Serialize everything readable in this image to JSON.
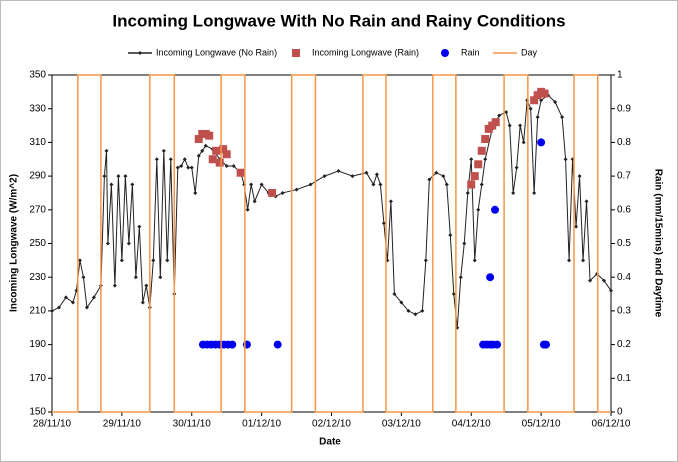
{
  "chart_data": {
    "type": "line",
    "title": "Incoming Longwave With No Rain and Rainy Conditions",
    "x_label": "Date",
    "y_label": "Incoming Longwave  (W/m^2)",
    "y2_label": "Rain (mm/15mins) and Daytime",
    "xlim": [
      0,
      8
    ],
    "xticks": [
      {
        "value": 0,
        "label": "28/11/10"
      },
      {
        "value": 1,
        "label": "29/11/10"
      },
      {
        "value": 2,
        "label": "30/11/10"
      },
      {
        "value": 3,
        "label": "01/12/10"
      },
      {
        "value": 4,
        "label": "02/12/10"
      },
      {
        "value": 5,
        "label": "03/12/10"
      },
      {
        "value": 6,
        "label": "04/12/10"
      },
      {
        "value": 7,
        "label": "05/12/10"
      },
      {
        "value": 8,
        "label": "06/12/10"
      }
    ],
    "ylim": [
      150,
      350
    ],
    "yticks": [
      150,
      170,
      190,
      210,
      230,
      250,
      270,
      290,
      310,
      330,
      350
    ],
    "y2lim": [
      0,
      1
    ],
    "y2ticks": [
      0,
      0.1,
      0.2,
      0.3,
      0.4,
      0.5,
      0.6,
      0.7,
      0.8,
      0.9,
      1
    ],
    "series": [
      {
        "name": "Incoming Longwave (No Rain)",
        "color": "#222222",
        "line": true,
        "marker": "diamond",
        "x": [
          0.0,
          0.1,
          0.2,
          0.3,
          0.35,
          0.4,
          0.45,
          0.5,
          0.6,
          0.7,
          0.75,
          0.78,
          0.8,
          0.85,
          0.9,
          0.95,
          1.0,
          1.05,
          1.1,
          1.15,
          1.2,
          1.25,
          1.3,
          1.35,
          1.4,
          1.45,
          1.5,
          1.55,
          1.6,
          1.65,
          1.7,
          1.75,
          1.8,
          1.85,
          1.9,
          1.95,
          2.0,
          2.05,
          2.1,
          2.15,
          2.2,
          2.3,
          2.4,
          2.5,
          2.6,
          2.7,
          2.75,
          2.8,
          2.85,
          2.9,
          3.0,
          3.1,
          3.2,
          3.3,
          3.5,
          3.7,
          3.9,
          4.1,
          4.3,
          4.5,
          4.6,
          4.65,
          4.7,
          4.75,
          4.8,
          4.85,
          4.9,
          5.0,
          5.1,
          5.2,
          5.3,
          5.35,
          5.4,
          5.5,
          5.6,
          5.65,
          5.7,
          5.75,
          5.8,
          5.85,
          5.9,
          5.95,
          6.0,
          6.05,
          6.1,
          6.15,
          6.2,
          6.3,
          6.4,
          6.5,
          6.55,
          6.6,
          6.65,
          6.7,
          6.75,
          6.8,
          6.85,
          6.9,
          6.95,
          7.0,
          7.1,
          7.2,
          7.3,
          7.35,
          7.4,
          7.45,
          7.5,
          7.55,
          7.6,
          7.65,
          7.7,
          7.8,
          7.9,
          8.0
        ],
        "values": [
          210,
          212,
          218,
          215,
          222,
          240,
          230,
          212,
          218,
          225,
          290,
          305,
          250,
          285,
          225,
          290,
          240,
          290,
          250,
          285,
          230,
          260,
          215,
          225,
          212,
          240,
          300,
          230,
          305,
          240,
          300,
          220,
          295,
          296,
          300,
          295,
          295,
          280,
          302,
          305,
          308,
          306,
          300,
          296,
          296,
          292,
          285,
          270,
          285,
          275,
          285,
          280,
          278,
          280,
          282,
          285,
          290,
          293,
          290,
          292,
          285,
          291,
          285,
          262,
          240,
          275,
          220,
          215,
          210,
          208,
          210,
          240,
          288,
          292,
          290,
          285,
          255,
          220,
          200,
          230,
          250,
          280,
          300,
          240,
          270,
          285,
          300,
          318,
          326,
          328,
          320,
          280,
          295,
          320,
          310,
          335,
          330,
          280,
          325,
          335,
          338,
          334,
          325,
          300,
          240,
          300,
          260,
          290,
          240,
          275,
          228,
          232,
          228,
          222
        ]
      },
      {
        "name": "Incoming Longwave (Rain)",
        "color": "#c0504d",
        "line": false,
        "marker": "square",
        "x": [
          2.1,
          2.15,
          2.2,
          2.25,
          2.3,
          2.35,
          2.4,
          2.45,
          2.5,
          2.7,
          3.15,
          6.0,
          6.05,
          6.1,
          6.15,
          6.2,
          6.25,
          6.3,
          6.35,
          6.9,
          6.95,
          7.0,
          7.05
        ],
        "values": [
          312,
          315,
          315,
          314,
          300,
          305,
          298,
          306,
          303,
          292,
          280,
          285,
          290,
          297,
          305,
          312,
          318,
          320,
          322,
          335,
          338,
          340,
          339
        ]
      },
      {
        "name": "Rain",
        "color": "#0000ee",
        "line": false,
        "marker": "circle",
        "axis": "y2",
        "x": [
          2.16,
          2.22,
          2.28,
          2.34,
          2.4,
          2.46,
          2.52,
          2.58,
          2.79,
          3.23,
          6.17,
          6.22,
          6.27,
          6.31,
          6.37,
          6.27,
          6.34,
          7.0,
          7.04,
          7.07
        ],
        "values": [
          0.2,
          0.2,
          0.2,
          0.2,
          0.2,
          0.2,
          0.2,
          0.2,
          0.2,
          0.2,
          0.2,
          0.2,
          0.2,
          0.2,
          0.2,
          0.4,
          0.6,
          0.8,
          0.2,
          0.2
        ]
      },
      {
        "name": "Day",
        "color": "#f79646",
        "line": true,
        "marker": "none",
        "axis": "y2",
        "x": [
          0,
          0.37,
          0.37,
          0.7,
          0.7,
          1.4,
          1.4,
          1.75,
          1.75,
          2.42,
          2.42,
          2.76,
          2.76,
          3.43,
          3.43,
          3.77,
          3.77,
          4.45,
          4.45,
          4.78,
          4.78,
          5.45,
          5.45,
          5.78,
          5.78,
          6.47,
          6.47,
          6.81,
          6.81,
          7.47,
          7.47,
          7.81,
          7.81,
          8
        ],
        "values": [
          0,
          0,
          1,
          1,
          0,
          0,
          1,
          1,
          0,
          0,
          1,
          1,
          0,
          0,
          1,
          1,
          0,
          0,
          1,
          1,
          0,
          0,
          1,
          1,
          0,
          0,
          1,
          1,
          0,
          0,
          1,
          1,
          0,
          0
        ]
      }
    ]
  }
}
